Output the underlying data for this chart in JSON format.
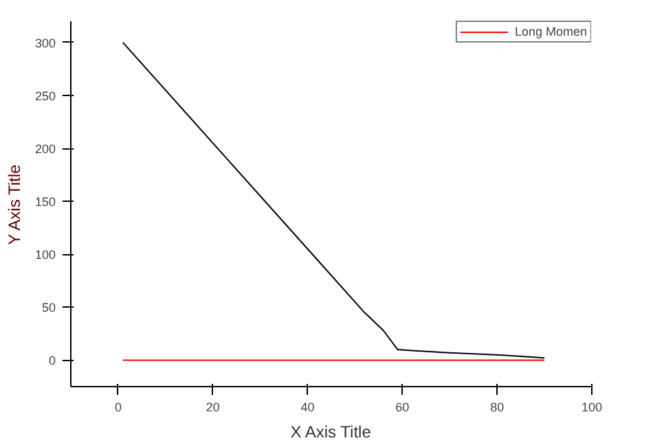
{
  "chart_data": {
    "type": "line",
    "xlabel": "X Axis Title",
    "ylabel": "Y Axis Title",
    "xlim": [
      -10,
      100
    ],
    "ylim": [
      -25,
      320
    ],
    "xticks": [
      0,
      20,
      40,
      60,
      80,
      100
    ],
    "yticks": [
      0,
      50,
      100,
      150,
      200,
      250,
      300
    ],
    "grid": false,
    "legend": "top right",
    "line_style": "solid",
    "marker": "none",
    "series": [
      {
        "color": "#000000",
        "x": [
          1,
          20,
          40,
          52,
          56,
          59,
          62,
          70,
          80,
          87,
          90
        ],
        "values": [
          300,
          205,
          105,
          45,
          28,
          10,
          9,
          7,
          5,
          3,
          2
        ]
      },
      {
        "name": "Long Momen",
        "color": "#ff0000",
        "x": [
          1,
          90
        ],
        "values": [
          0,
          0
        ]
      }
    ]
  }
}
